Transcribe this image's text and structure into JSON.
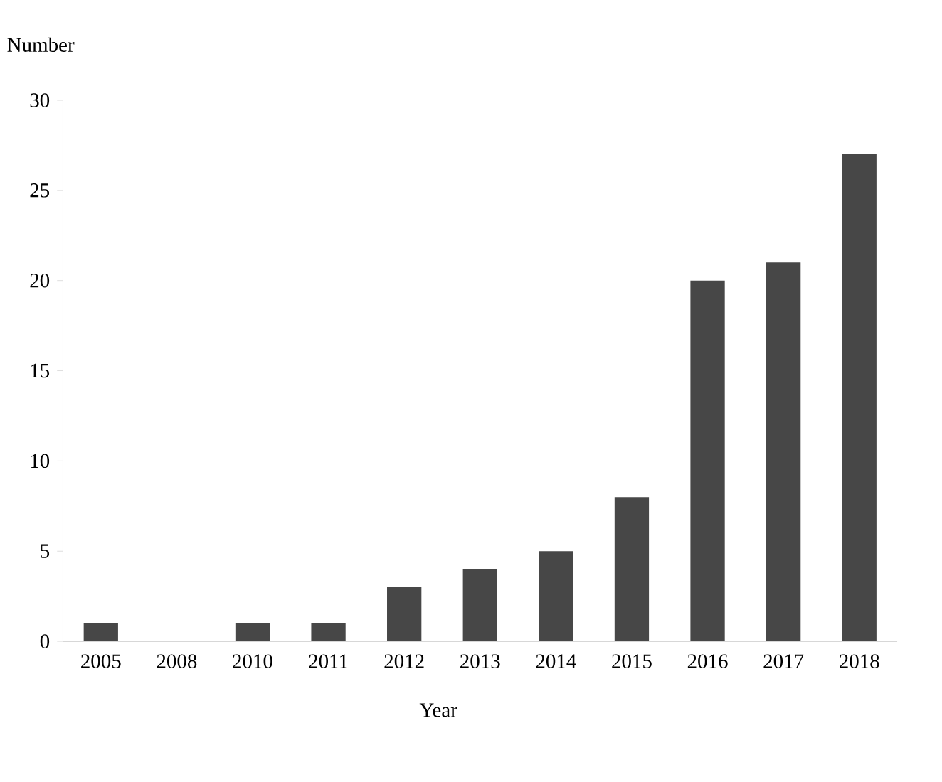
{
  "chart_data": {
    "type": "bar",
    "xlabel": "Year",
    "ylabel": "Number",
    "categories": [
      "2005",
      "2008",
      "2010",
      "2011",
      "2012",
      "2013",
      "2014",
      "2015",
      "2016",
      "2017",
      "2018"
    ],
    "values": [
      1,
      0,
      1,
      1,
      3,
      4,
      5,
      8,
      20,
      21,
      27
    ],
    "color": "#474747",
    "ylim": [
      0,
      30
    ],
    "yticks": [
      0,
      5,
      10,
      15,
      20,
      25,
      30
    ]
  }
}
